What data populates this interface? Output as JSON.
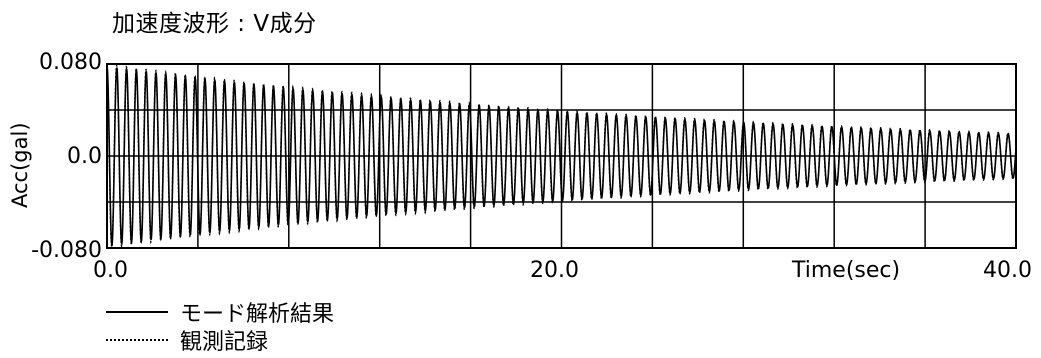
{
  "chart_data": {
    "type": "line",
    "title": "加速度波形 : V成分",
    "xlabel": "Time(sec)",
    "ylabel": "Acc(gal)",
    "xlim": [
      0,
      40
    ],
    "ylim": [
      -0.08,
      0.08
    ],
    "x_tick_labels": [
      "0.0",
      "20.0",
      "40.0"
    ],
    "y_tick_labels": [
      "0.080",
      "0.0",
      "-0.080"
    ],
    "grid": true,
    "legend_position": "bottom-left",
    "series": [
      {
        "name": "モード解析結果",
        "style": "solid",
        "amplitude_start": 0.078,
        "amplitude_end": 0.019,
        "frequency_hz": 2.32
      },
      {
        "name": "観測記録",
        "style": "dotted",
        "amplitude_start": 0.08,
        "amplitude_end": 0.02,
        "frequency_hz": 2.32
      }
    ]
  }
}
